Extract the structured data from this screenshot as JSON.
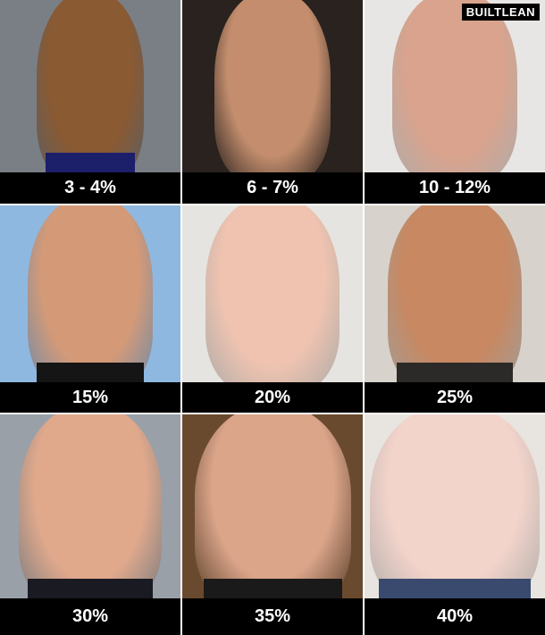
{
  "logo": "BUILTLEAN",
  "cells": [
    {
      "label": "3 - 4%",
      "bg": "#7a7f86",
      "skin": "#8a5a32",
      "pants": "#1c1f6a"
    },
    {
      "label": "6 - 7%",
      "bg": "#2a221e",
      "skin": "#c48e6e",
      "pants": ""
    },
    {
      "label": "10 - 12%",
      "bg": "#e8e6e4",
      "skin": "#d9a38d",
      "pants": ""
    },
    {
      "label": "15%",
      "bg": "#8fb8e0",
      "skin": "#d49a78",
      "pants": "#151515"
    },
    {
      "label": "20%",
      "bg": "#e6e4e0",
      "skin": "#efc3b0",
      "pants": ""
    },
    {
      "label": "25%",
      "bg": "#d8d2cc",
      "skin": "#c78862",
      "pants": "#2c2a28"
    },
    {
      "label": "30%",
      "bg": "#9aa0a8",
      "skin": "#e0a98c",
      "pants": "#1a1a22"
    },
    {
      "label": "35%",
      "bg": "#6a4a2e",
      "skin": "#dba58a",
      "pants": "#1a1a1a"
    },
    {
      "label": "40%",
      "bg": "#e8e4e0",
      "skin": "#f3d4cb",
      "pants": "#3a4a6e"
    }
  ]
}
